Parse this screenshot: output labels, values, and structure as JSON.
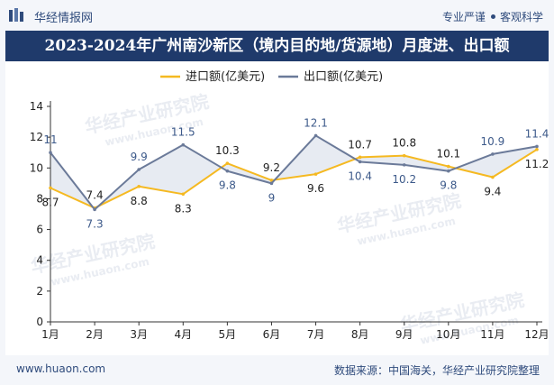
{
  "header": {
    "brand": "华经情报网",
    "tagline_left": "专业严谨",
    "tagline_right": "客观科学"
  },
  "title": "2023-2024年广州南沙新区（境内目的地/货源地）月度进、出口额",
  "footer": {
    "site": "www.huaon.com",
    "source": "数据来源：中国海关，华经产业研究院整理"
  },
  "watermark": {
    "text": "华经产业研究院",
    "url": "www.huaon.com"
  },
  "colors": {
    "import": "#f5b921",
    "export": "#6b7a99",
    "fill": "#c9d3e3",
    "title_bg": "#1f3a6b"
  },
  "chart_data": {
    "type": "line",
    "title": "",
    "categories": [
      "1月",
      "2月",
      "3月",
      "4月",
      "5月",
      "6月",
      "7月",
      "8月",
      "9月",
      "10月",
      "11月",
      "12月"
    ],
    "series": [
      {
        "name": "进口额(亿美元)",
        "values": [
          8.7,
          7.4,
          8.8,
          8.3,
          10.3,
          9.2,
          9.6,
          10.7,
          10.8,
          10.1,
          9.4,
          11.2
        ]
      },
      {
        "name": "出口额(亿美元)",
        "values": [
          11,
          7.3,
          9.9,
          11.5,
          9.8,
          9,
          12.1,
          10.4,
          10.2,
          9.8,
          10.9,
          11.4
        ]
      }
    ],
    "ylim": [
      0,
      14
    ],
    "yticks": [
      0,
      2,
      4,
      6,
      8,
      10,
      12,
      14
    ],
    "legend": "top-center",
    "grid": false,
    "xlabel": "",
    "ylabel": ""
  }
}
